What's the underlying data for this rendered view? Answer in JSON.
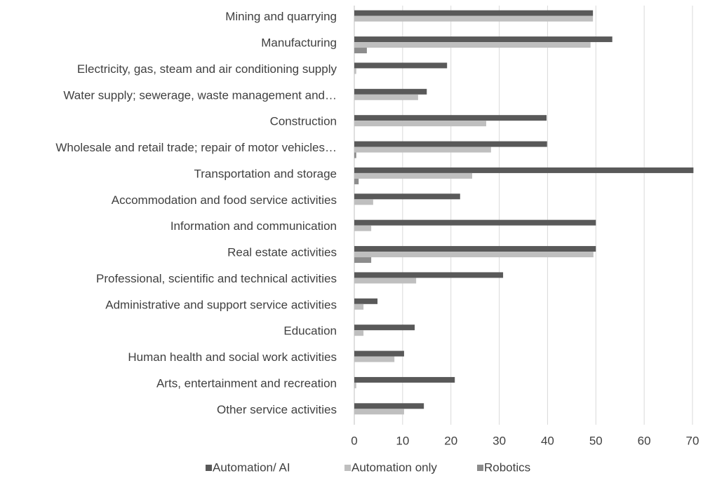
{
  "chart_data": {
    "type": "bar",
    "orientation": "horizontal",
    "categories": [
      "Mining and quarrying",
      "Manufacturing",
      "Electricity, gas, steam and air conditioning supply",
      "Water supply; sewerage, waste management and…",
      "Construction",
      "Wholesale and retail trade; repair of motor vehicles…",
      "Transportation and storage",
      "Accommodation and food service activities",
      "Information and communication",
      "Real estate activities",
      "Professional, scientific and technical activities",
      "Administrative and support service activities",
      "Education",
      "Human health and social work activities",
      "Arts, entertainment and recreation",
      "Other service activities"
    ],
    "series": [
      {
        "name": "Automation/ AI",
        "color": "#595959",
        "values": [
          49.4,
          53.4,
          19.2,
          15,
          39.8,
          39.9,
          70.2,
          21.9,
          50,
          50,
          30.8,
          4.8,
          12.5,
          10.3,
          20.8,
          14.4
        ]
      },
      {
        "name": "Automation only",
        "color": "#bfbfbf",
        "values": [
          49.4,
          48.9,
          0.4,
          13.2,
          27.3,
          28.3,
          24.4,
          3.9,
          3.5,
          49.5,
          12.8,
          1.9,
          1.9,
          8.3,
          0.4,
          10.3
        ]
      },
      {
        "name": "Robotics",
        "color": "#8c8c8c",
        "values": [
          0,
          2.6,
          0,
          0,
          0,
          0.4,
          0.9,
          0,
          0,
          3.5,
          0,
          0,
          0,
          0,
          0,
          0
        ]
      }
    ],
    "xlim": [
      0,
      70
    ],
    "xticks": [
      0,
      10,
      20,
      30,
      40,
      50,
      60,
      70
    ],
    "grid": true,
    "legend": "bottom"
  }
}
